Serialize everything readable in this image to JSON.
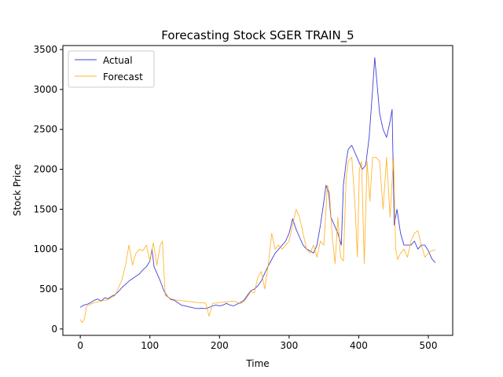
{
  "chart_data": {
    "type": "line",
    "title": "Forecasting Stock SGER TRAIN_5",
    "xlabel": "Time",
    "ylabel": "Stock Price",
    "xlim": [
      -25,
      535
    ],
    "ylim": [
      -80,
      3550
    ],
    "xticks": [
      0,
      100,
      200,
      300,
      400,
      500
    ],
    "yticks": [
      0,
      500,
      1000,
      1500,
      2000,
      2500,
      3000,
      3500
    ],
    "grid": false,
    "legend": "top-left",
    "series": [
      {
        "name": "Actual",
        "color": "#0000cc",
        "points": [
          [
            0,
            270
          ],
          [
            5,
            300
          ],
          [
            10,
            310
          ],
          [
            15,
            330
          ],
          [
            20,
            360
          ],
          [
            25,
            375
          ],
          [
            30,
            350
          ],
          [
            35,
            390
          ],
          [
            40,
            380
          ],
          [
            45,
            410
          ],
          [
            50,
            430
          ],
          [
            55,
            470
          ],
          [
            60,
            520
          ],
          [
            65,
            560
          ],
          [
            70,
            600
          ],
          [
            75,
            630
          ],
          [
            80,
            660
          ],
          [
            85,
            690
          ],
          [
            90,
            740
          ],
          [
            95,
            780
          ],
          [
            100,
            850
          ],
          [
            103,
            1000
          ],
          [
            106,
            780
          ],
          [
            110,
            700
          ],
          [
            115,
            600
          ],
          [
            120,
            480
          ],
          [
            125,
            410
          ],
          [
            130,
            370
          ],
          [
            135,
            360
          ],
          [
            140,
            330
          ],
          [
            145,
            300
          ],
          [
            150,
            290
          ],
          [
            155,
            280
          ],
          [
            160,
            270
          ],
          [
            165,
            260
          ],
          [
            170,
            255
          ],
          [
            175,
            260
          ],
          [
            180,
            255
          ],
          [
            185,
            270
          ],
          [
            190,
            290
          ],
          [
            195,
            300
          ],
          [
            200,
            290
          ],
          [
            205,
            300
          ],
          [
            210,
            320
          ],
          [
            215,
            300
          ],
          [
            220,
            290
          ],
          [
            225,
            310
          ],
          [
            230,
            330
          ],
          [
            235,
            360
          ],
          [
            240,
            420
          ],
          [
            245,
            480
          ],
          [
            250,
            500
          ],
          [
            255,
            540
          ],
          [
            260,
            600
          ],
          [
            265,
            700
          ],
          [
            270,
            790
          ],
          [
            275,
            870
          ],
          [
            280,
            950
          ],
          [
            285,
            1000
          ],
          [
            290,
            1050
          ],
          [
            295,
            1100
          ],
          [
            300,
            1200
          ],
          [
            305,
            1380
          ],
          [
            310,
            1250
          ],
          [
            315,
            1150
          ],
          [
            320,
            1050
          ],
          [
            325,
            1000
          ],
          [
            330,
            980
          ],
          [
            335,
            950
          ],
          [
            340,
            1050
          ],
          [
            345,
            1300
          ],
          [
            350,
            1600
          ],
          [
            353,
            1800
          ],
          [
            357,
            1700
          ],
          [
            360,
            1400
          ],
          [
            365,
            1300
          ],
          [
            370,
            1200
          ],
          [
            375,
            1050
          ],
          [
            378,
            1800
          ],
          [
            382,
            2100
          ],
          [
            385,
            2250
          ],
          [
            390,
            2300
          ],
          [
            395,
            2200
          ],
          [
            400,
            2100
          ],
          [
            405,
            2000
          ],
          [
            410,
            2050
          ],
          [
            415,
            2400
          ],
          [
            420,
            3000
          ],
          [
            423,
            3400
          ],
          [
            426,
            3100
          ],
          [
            430,
            2700
          ],
          [
            435,
            2500
          ],
          [
            440,
            2400
          ],
          [
            445,
            2600
          ],
          [
            448,
            2750
          ],
          [
            451,
            1300
          ],
          [
            455,
            1500
          ],
          [
            460,
            1200
          ],
          [
            465,
            1050
          ],
          [
            470,
            1050
          ],
          [
            475,
            1050
          ],
          [
            480,
            1100
          ],
          [
            485,
            1000
          ],
          [
            490,
            1050
          ],
          [
            495,
            1050
          ],
          [
            500,
            980
          ],
          [
            505,
            880
          ],
          [
            510,
            830
          ]
        ]
      },
      {
        "name": "Forecast",
        "color": "#ffa500",
        "points": [
          [
            0,
            120
          ],
          [
            3,
            80
          ],
          [
            6,
            130
          ],
          [
            9,
            280
          ],
          [
            12,
            300
          ],
          [
            20,
            330
          ],
          [
            30,
            350
          ],
          [
            40,
            370
          ],
          [
            50,
            420
          ],
          [
            55,
            520
          ],
          [
            60,
            620
          ],
          [
            65,
            800
          ],
          [
            70,
            1050
          ],
          [
            75,
            800
          ],
          [
            80,
            950
          ],
          [
            85,
            1000
          ],
          [
            90,
            980
          ],
          [
            95,
            1050
          ],
          [
            100,
            850
          ],
          [
            105,
            1080
          ],
          [
            110,
            800
          ],
          [
            115,
            1050
          ],
          [
            118,
            1100
          ],
          [
            122,
            420
          ],
          [
            130,
            380
          ],
          [
            140,
            360
          ],
          [
            150,
            350
          ],
          [
            160,
            340
          ],
          [
            170,
            330
          ],
          [
            180,
            325
          ],
          [
            185,
            160
          ],
          [
            190,
            320
          ],
          [
            200,
            330
          ],
          [
            210,
            340
          ],
          [
            220,
            350
          ],
          [
            230,
            320
          ],
          [
            235,
            340
          ],
          [
            240,
            400
          ],
          [
            245,
            470
          ],
          [
            250,
            450
          ],
          [
            255,
            650
          ],
          [
            260,
            720
          ],
          [
            265,
            500
          ],
          [
            270,
            800
          ],
          [
            275,
            1200
          ],
          [
            280,
            1000
          ],
          [
            285,
            1050
          ],
          [
            290,
            1000
          ],
          [
            295,
            1050
          ],
          [
            300,
            1100
          ],
          [
            305,
            1300
          ],
          [
            310,
            1500
          ],
          [
            315,
            1400
          ],
          [
            320,
            1200
          ],
          [
            325,
            1000
          ],
          [
            330,
            950
          ],
          [
            335,
            1050
          ],
          [
            340,
            900
          ],
          [
            345,
            1100
          ],
          [
            350,
            1050
          ],
          [
            355,
            1800
          ],
          [
            358,
            1700
          ],
          [
            362,
            1150
          ],
          [
            366,
            820
          ],
          [
            370,
            1400
          ],
          [
            374,
            900
          ],
          [
            378,
            850
          ],
          [
            382,
            1900
          ],
          [
            385,
            2100
          ],
          [
            390,
            2150
          ],
          [
            395,
            1500
          ],
          [
            398,
            900
          ],
          [
            401,
            2000
          ],
          [
            404,
            2100
          ],
          [
            408,
            820
          ],
          [
            412,
            2100
          ],
          [
            416,
            1600
          ],
          [
            420,
            2150
          ],
          [
            425,
            2150
          ],
          [
            430,
            2100
          ],
          [
            435,
            1500
          ],
          [
            440,
            2150
          ],
          [
            445,
            1400
          ],
          [
            450,
            2150
          ],
          [
            453,
            1000
          ],
          [
            456,
            870
          ],
          [
            460,
            950
          ],
          [
            465,
            1000
          ],
          [
            470,
            900
          ],
          [
            475,
            1100
          ],
          [
            480,
            1200
          ],
          [
            485,
            1230
          ],
          [
            490,
            1050
          ],
          [
            495,
            900
          ],
          [
            500,
            950
          ],
          [
            505,
            980
          ],
          [
            510,
            990
          ]
        ]
      }
    ]
  }
}
